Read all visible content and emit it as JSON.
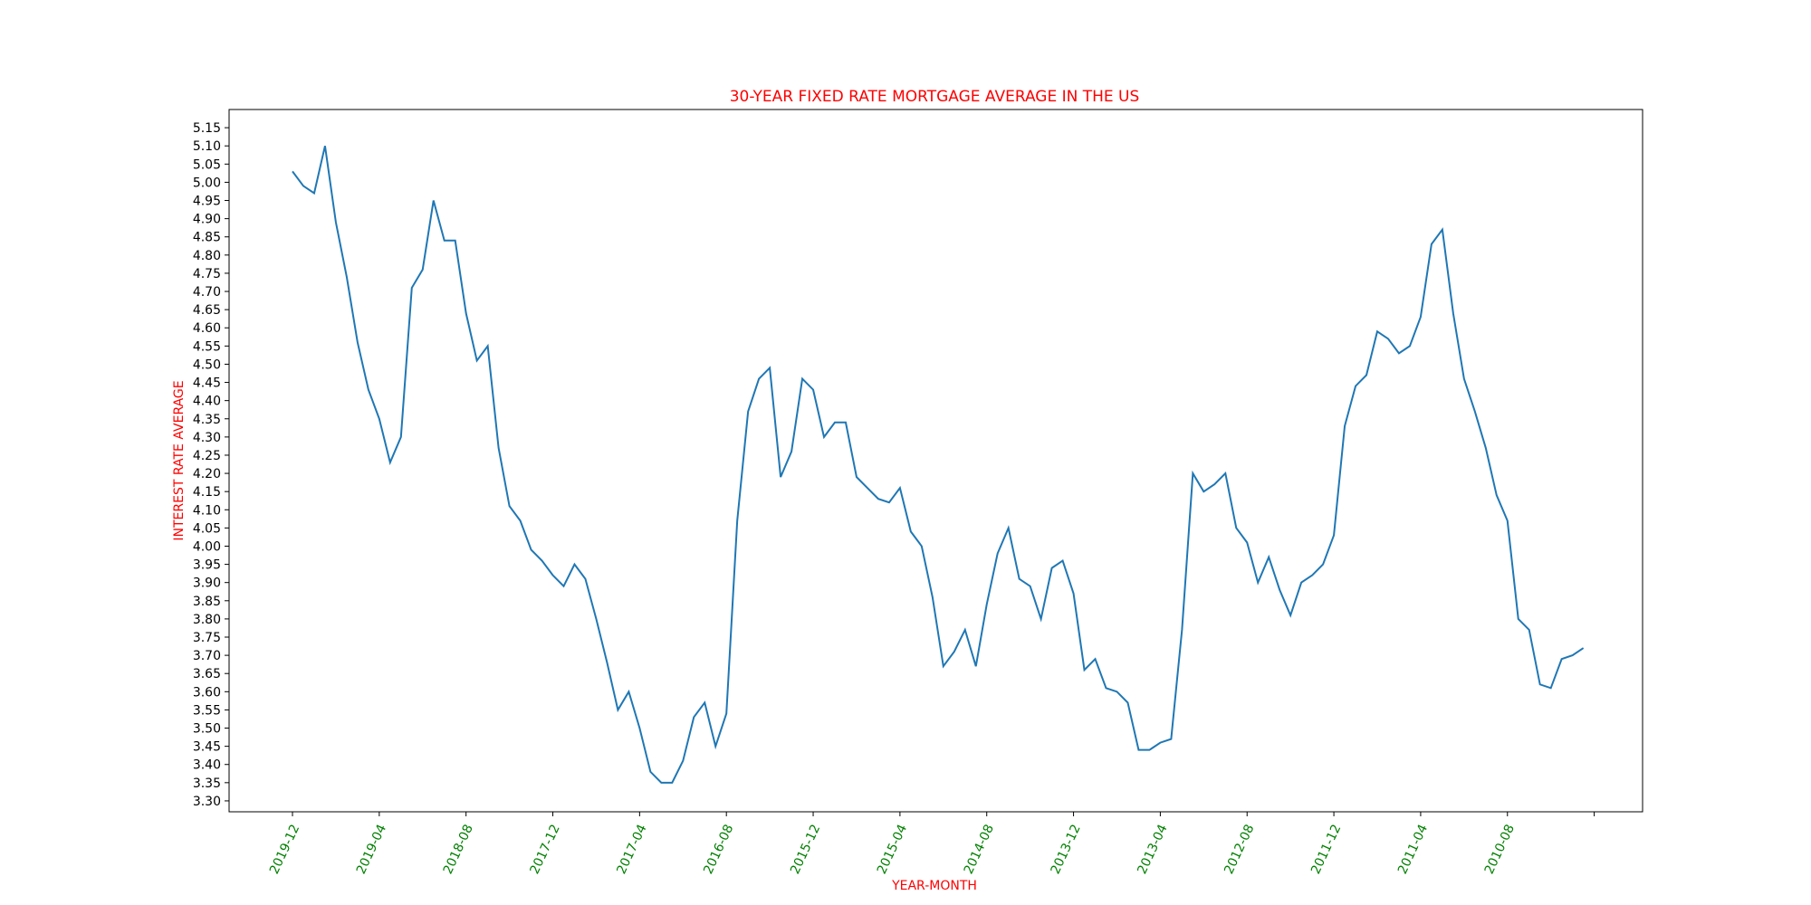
{
  "chart_data": {
    "type": "line",
    "title": "30-YEAR FIXED RATE MORTGAGE AVERAGE IN THE US",
    "xlabel": "YEAR-MONTH",
    "ylabel": "INTEREST RATE AVERAGE",
    "ylim": [
      3.27,
      5.2
    ],
    "yticks": [
      "3.30",
      "3.35",
      "3.40",
      "3.45",
      "3.50",
      "3.55",
      "3.60",
      "3.65",
      "3.70",
      "3.75",
      "3.80",
      "3.85",
      "3.90",
      "3.95",
      "4.00",
      "4.05",
      "4.10",
      "4.15",
      "4.20",
      "4.25",
      "4.30",
      "4.35",
      "4.40",
      "4.45",
      "4.50",
      "4.55",
      "4.60",
      "4.65",
      "4.70",
      "4.75",
      "4.80",
      "4.85",
      "4.90",
      "4.95",
      "5.00",
      "5.05",
      "5.10",
      "5.15"
    ],
    "xtick_labels": [
      "2019-12",
      "2019-04",
      "2018-08",
      "2017-12",
      "2017-04",
      "2016-08",
      "2015-12",
      "2015-04",
      "2014-08",
      "2013-12",
      "2013-04",
      "2012-08",
      "2011-12",
      "2011-04",
      "2010-08",
      ""
    ],
    "grid": false,
    "colors": {
      "line": "#1f77b4",
      "title": "#ff0000",
      "axis_label": "#ff0000",
      "x_tick_label": "#008000"
    },
    "series": [
      {
        "values": [
          5.03,
          4.99,
          4.97,
          5.1,
          4.89,
          4.74,
          4.56,
          4.43,
          4.35,
          4.23,
          4.3,
          4.71,
          4.76,
          4.95,
          4.84,
          4.84,
          4.64,
          4.51,
          4.55,
          4.27,
          4.11,
          4.07,
          3.99,
          3.96,
          3.92,
          3.89,
          3.95,
          3.91,
          3.8,
          3.68,
          3.55,
          3.6,
          3.5,
          3.38,
          3.35,
          3.35,
          3.41,
          3.53,
          3.57,
          3.45,
          3.54,
          4.07,
          4.37,
          4.46,
          4.49,
          4.19,
          4.26,
          4.46,
          4.43,
          4.3,
          4.34,
          4.34,
          4.19,
          4.16,
          4.13,
          4.12,
          4.16,
          4.04,
          4.0,
          3.86,
          3.67,
          3.71,
          3.77,
          3.67,
          3.84,
          3.98,
          4.05,
          3.91,
          3.89,
          3.8,
          3.94,
          3.96,
          3.87,
          3.66,
          3.69,
          3.61,
          3.6,
          3.57,
          3.44,
          3.44,
          3.46,
          3.47,
          3.77,
          4.2,
          4.15,
          4.17,
          4.2,
          4.05,
          4.01,
          3.9,
          3.97,
          3.88,
          3.81,
          3.9,
          3.92,
          3.95,
          4.03,
          4.33,
          4.44,
          4.47,
          4.59,
          4.57,
          4.53,
          4.55,
          4.63,
          4.83,
          4.87,
          4.64,
          4.46,
          4.37,
          4.27,
          4.14,
          4.07,
          3.8,
          3.77,
          3.62,
          3.61,
          3.69,
          3.7,
          3.72
        ]
      }
    ]
  }
}
